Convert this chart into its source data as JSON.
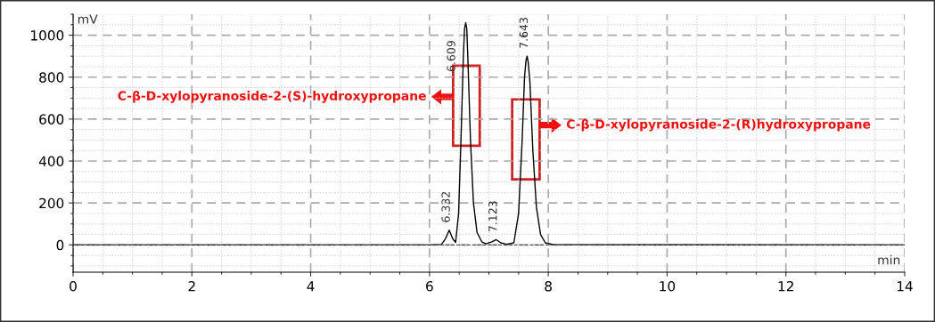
{
  "chart_data": {
    "type": "line",
    "xlabel": "min",
    "ylabel": "mV",
    "x": [
      0,
      6.0,
      6.2,
      6.27,
      6.332,
      6.39,
      6.44,
      6.49,
      6.53,
      6.57,
      6.59,
      6.609,
      6.628,
      6.645,
      6.69,
      6.74,
      6.8,
      6.88,
      6.95,
      7.05,
      7.123,
      7.2,
      7.3,
      7.42,
      7.5,
      7.56,
      7.6,
      7.625,
      7.643,
      7.662,
      7.69,
      7.74,
      7.8,
      7.87,
      7.95,
      8.1,
      14
    ],
    "series": [
      {
        "color": "#000000",
        "values": [
          0,
          0,
          2,
          30,
          70,
          30,
          12,
          150,
          500,
          900,
          1030,
          1060,
          1030,
          900,
          500,
          200,
          60,
          15,
          5,
          15,
          25,
          10,
          3,
          10,
          150,
          500,
          800,
          880,
          900,
          870,
          780,
          450,
          180,
          50,
          10,
          1,
          0
        ]
      }
    ],
    "xlim": [
      0,
      14
    ],
    "xticks": [
      0,
      2,
      4,
      6,
      8,
      10,
      12,
      14
    ],
    "ylim": [
      -130,
      1100
    ],
    "yticks": [
      0,
      200,
      400,
      600,
      800,
      1000
    ],
    "grid": true,
    "marker": "none",
    "line_style": "solid",
    "annotations": [
      {
        "text": "6.332",
        "x": 6.332,
        "y": 70
      },
      {
        "text": "6.609",
        "x": 6.609,
        "y": 1060
      },
      {
        "text": "7.123",
        "x": 7.123,
        "y": 25
      },
      {
        "text": "7.643",
        "x": 7.643,
        "y": 900
      },
      "C-β-D-xylopyranoside-2-(S)-hydroxypropane",
      "C-β-D-xylopyranoside-2-(R)hydroxypropane"
    ],
    "ref_lines": [
      {
        "axis": "y",
        "value": 0,
        "color": "#555555",
        "line_style": "dashed"
      }
    ]
  }
}
